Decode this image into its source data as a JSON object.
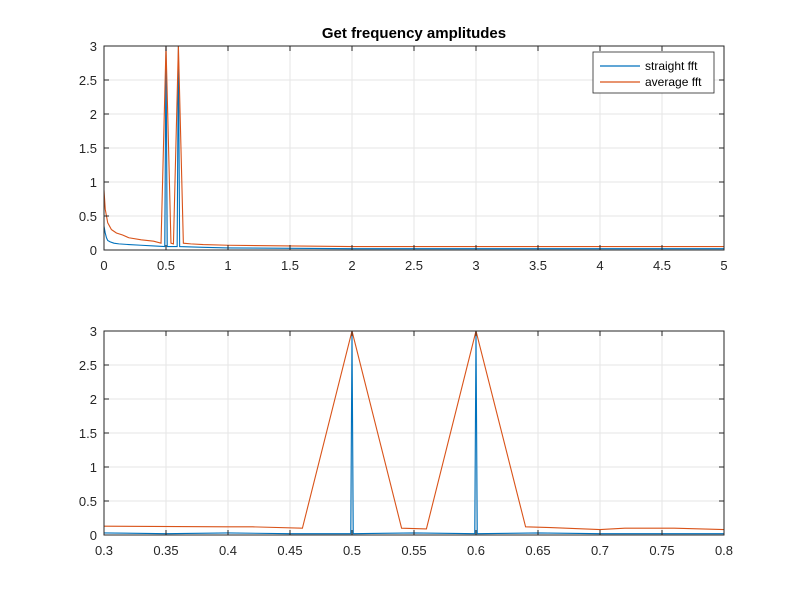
{
  "figure": {
    "background": "#ffffff"
  },
  "colors": {
    "series1": "#0072BD",
    "series2": "#D95319",
    "grid": "#e6e6e6",
    "axis": "#262626"
  },
  "chart_data": [
    {
      "type": "line",
      "title": "Get frequency amplitudes",
      "xlabel": "",
      "ylabel": "",
      "xlim": [
        0,
        5
      ],
      "ylim": [
        0,
        3
      ],
      "xticks": [
        0,
        0.5,
        1,
        1.5,
        2,
        2.5,
        3,
        3.5,
        4,
        4.5,
        5
      ],
      "xtick_labels": [
        "0",
        "0.5",
        "1",
        "1.5",
        "2",
        "2.5",
        "3",
        "3.5",
        "4",
        "4.5",
        "5"
      ],
      "yticks": [
        0,
        0.5,
        1,
        1.5,
        2,
        2.5,
        3
      ],
      "ytick_labels": [
        "0",
        "0.5",
        "1",
        "1.5",
        "2",
        "2.5",
        "3"
      ],
      "grid": true,
      "legend": {
        "placement": "top-right",
        "entries": [
          "straight fft",
          "average fft"
        ]
      },
      "series": [
        {
          "name": "straight fft",
          "color": "#0072BD",
          "x": [
            0,
            0.01,
            0.02,
            0.03,
            0.05,
            0.08,
            0.12,
            0.2,
            0.3,
            0.4,
            0.49,
            0.5,
            0.51,
            0.59,
            0.6,
            0.61,
            0.8,
            1,
            2,
            3,
            4,
            5
          ],
          "y": [
            0.35,
            0.25,
            0.18,
            0.14,
            0.12,
            0.1,
            0.09,
            0.08,
            0.07,
            0.06,
            0.05,
            3,
            0.05,
            0.05,
            3,
            0.05,
            0.04,
            0.03,
            0.02,
            0.02,
            0.02,
            0.02
          ]
        },
        {
          "name": "average fft",
          "color": "#D95319",
          "x": [
            0,
            0.01,
            0.03,
            0.06,
            0.1,
            0.15,
            0.2,
            0.3,
            0.4,
            0.46,
            0.5,
            0.54,
            0.56,
            0.6,
            0.64,
            0.7,
            0.8,
            1,
            1.5,
            2,
            2.5,
            3,
            3.5,
            4,
            4.5,
            5
          ],
          "y": [
            0.88,
            0.6,
            0.4,
            0.3,
            0.25,
            0.22,
            0.18,
            0.15,
            0.13,
            0.1,
            3.0,
            0.1,
            0.09,
            3.0,
            0.1,
            0.09,
            0.08,
            0.07,
            0.06,
            0.05,
            0.05,
            0.05,
            0.05,
            0.05,
            0.05,
            0.05
          ]
        }
      ]
    },
    {
      "type": "line",
      "title": "",
      "xlabel": "",
      "ylabel": "",
      "xlim": [
        0.3,
        0.8
      ],
      "ylim": [
        0,
        3
      ],
      "xticks": [
        0.3,
        0.35,
        0.4,
        0.45,
        0.5,
        0.55,
        0.6,
        0.65,
        0.7,
        0.75,
        0.8
      ],
      "xtick_labels": [
        "0.3",
        "0.35",
        "0.4",
        "0.45",
        "0.5",
        "0.55",
        "0.6",
        "0.65",
        "0.7",
        "0.75",
        "0.8"
      ],
      "yticks": [
        0,
        0.5,
        1,
        1.5,
        2,
        2.5,
        3
      ],
      "ytick_labels": [
        "0",
        "0.5",
        "1",
        "1.5",
        "2",
        "2.5",
        "3"
      ],
      "grid": true,
      "series": [
        {
          "name": "straight fft",
          "color": "#0072BD",
          "x": [
            0.3,
            0.35,
            0.4,
            0.45,
            0.499,
            0.5,
            0.501,
            0.55,
            0.599,
            0.6,
            0.601,
            0.65,
            0.7,
            0.75,
            0.8
          ],
          "y": [
            0.03,
            0.02,
            0.03,
            0.02,
            0.02,
            3.0,
            0.02,
            0.03,
            0.02,
            3.0,
            0.02,
            0.03,
            0.02,
            0.02,
            0.02
          ]
        },
        {
          "name": "average fft",
          "color": "#D95319",
          "x": [
            0.3,
            0.4,
            0.42,
            0.46,
            0.5,
            0.54,
            0.56,
            0.6,
            0.64,
            0.66,
            0.7,
            0.72,
            0.76,
            0.8
          ],
          "y": [
            0.13,
            0.12,
            0.12,
            0.1,
            3.0,
            0.1,
            0.09,
            3.0,
            0.12,
            0.11,
            0.08,
            0.1,
            0.1,
            0.08
          ]
        }
      ]
    }
  ]
}
